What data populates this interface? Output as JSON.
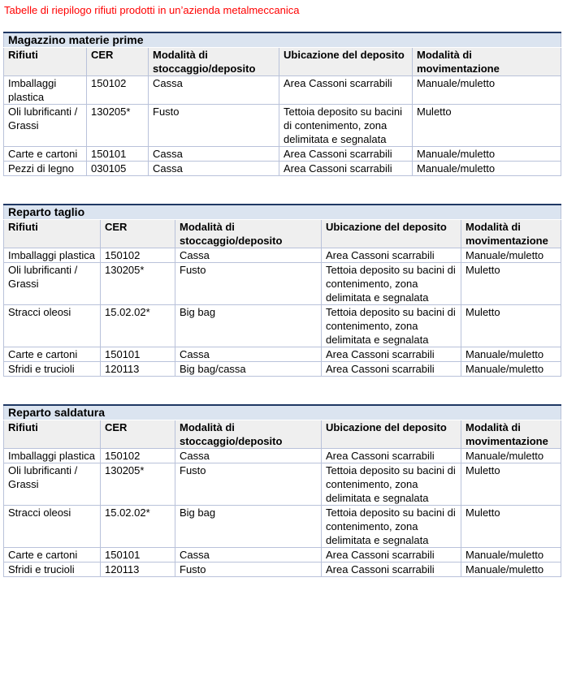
{
  "page_title": "Tabelle di riepilogo rifiuti prodotti in un’azienda metalmeccanica",
  "colors": {
    "title_text": "#ff0000",
    "table_top_border": "#1f3864",
    "section_band_bg": "#dbe4f0",
    "column_header_bg": "#efefef",
    "cell_border": "#b9c2da"
  },
  "column_headers": [
    "Rifiuti",
    "CER",
    "Modalità di stoccaggio/deposito",
    "Ubicazione del deposito",
    "Modalità di movimentazione"
  ],
  "tables": [
    {
      "section_title": "Magazzino materie prime",
      "rows": [
        [
          "Imballaggi plastica",
          "150102",
          "Cassa",
          "Area Cassoni scarrabili",
          "Manuale/muletto"
        ],
        [
          "Oli lubrificanti / Grassi",
          "130205*",
          "Fusto",
          "Tettoia deposito su bacini di contenimento, zona delimitata e segnalata",
          "Muletto"
        ],
        [
          "Carte e cartoni",
          "150101",
          "Cassa",
          "Area Cassoni scarrabili",
          "Manuale/muletto"
        ],
        [
          "Pezzi di legno",
          "030105",
          "Cassa",
          "Area Cassoni scarrabili",
          "Manuale/muletto"
        ]
      ]
    },
    {
      "section_title": "Reparto taglio",
      "rows": [
        [
          "Imballaggi plastica",
          "150102",
          "Cassa",
          "Area Cassoni scarrabili",
          "Manuale/muletto"
        ],
        [
          "Oli lubrificanti / Grassi",
          "130205*",
          "Fusto",
          "Tettoia deposito su bacini di contenimento, zona delimitata e segnalata",
          "Muletto"
        ],
        [
          "Stracci oleosi",
          "15.02.02*",
          "Big bag",
          "Tettoia deposito su bacini di contenimento, zona delimitata e segnalata",
          "Muletto"
        ],
        [
          "Carte e cartoni",
          "150101",
          "Cassa",
          "Area Cassoni scarrabili",
          "Manuale/muletto"
        ],
        [
          "Sfridi e trucioli",
          "120113",
          "Big bag/cassa",
          "Area Cassoni scarrabili",
          "Manuale/muletto"
        ]
      ]
    },
    {
      "section_title": "Reparto saldatura",
      "rows": [
        [
          "Imballaggi plastica",
          "150102",
          "Cassa",
          "Area Cassoni scarrabili",
          "Manuale/muletto"
        ],
        [
          "Oli lubrificanti / Grassi",
          "130205*",
          "Fusto",
          "Tettoia deposito su bacini di contenimento, zona delimitata e segnalata",
          "Muletto"
        ],
        [
          "Stracci oleosi",
          "15.02.02*",
          "Big bag",
          "Tettoia deposito su bacini di contenimento, zona delimitata e segnalata",
          "Muletto"
        ],
        [
          "Carte e cartoni",
          "150101",
          "Cassa",
          "Area Cassoni scarrabili",
          "Manuale/muletto"
        ],
        [
          "Sfridi e trucioli",
          "120113",
          "Fusto",
          "Area Cassoni scarrabili",
          "Manuale/muletto"
        ]
      ]
    }
  ]
}
